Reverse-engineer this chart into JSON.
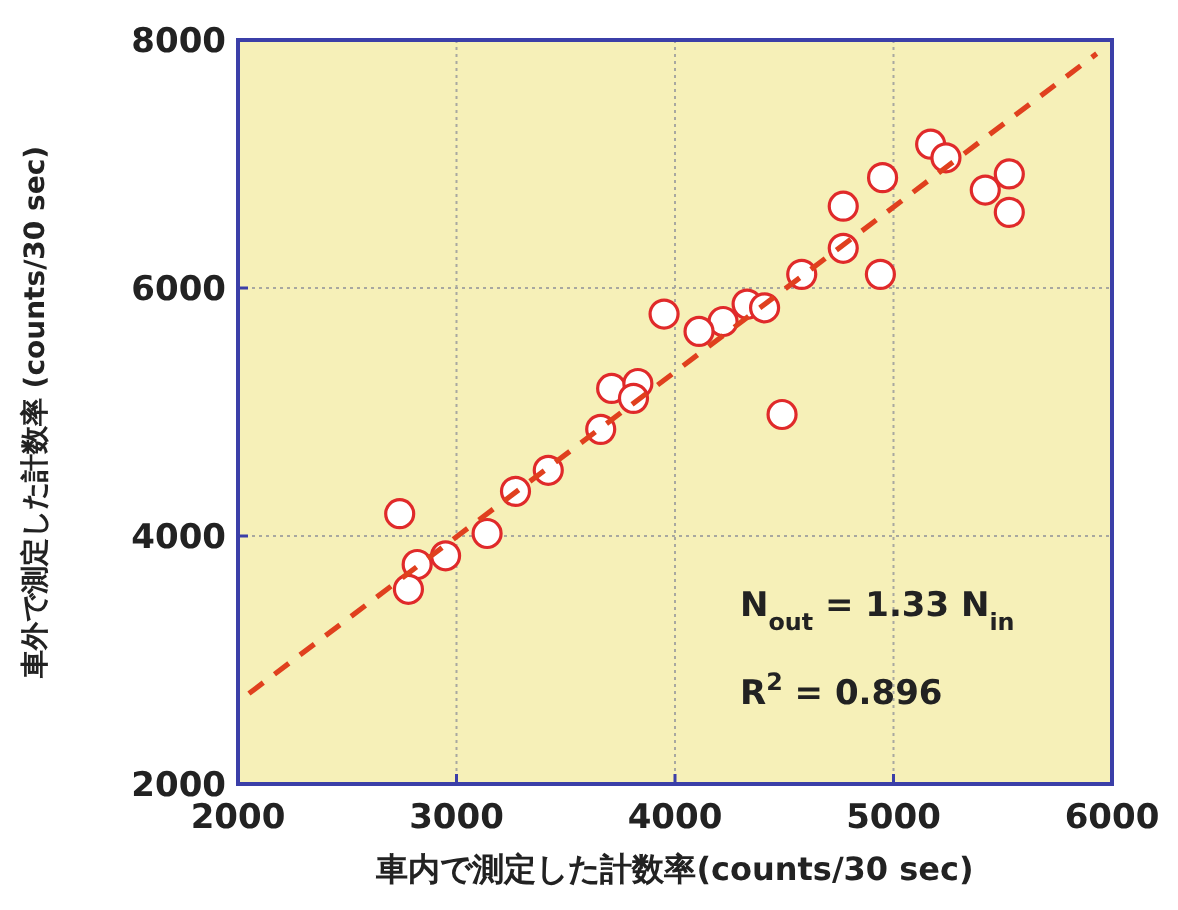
{
  "chart_data": {
    "type": "scatter",
    "xlabel": "車内で測定した計数率(counts/30 sec)",
    "ylabel": "車外で測定した計数率 (counts/30 sec)",
    "xlim": [
      2000,
      6000
    ],
    "ylim": [
      2000,
      8000
    ],
    "xticks": [
      2000,
      3000,
      4000,
      5000,
      6000
    ],
    "yticks": [
      2000,
      4000,
      6000,
      8000
    ],
    "grid": true,
    "series": [
      {
        "color": "#e02a2a",
        "marker": "circle",
        "x": [
          5170,
          5240,
          4950,
          5530,
          5420,
          5530,
          4770,
          4770,
          4940,
          4580,
          3950,
          4330,
          4410,
          4220,
          4110,
          3710,
          3830,
          3810,
          4490,
          3660,
          3420,
          3270,
          3140,
          2740,
          2950,
          2820,
          2780
        ],
        "values": [
          7160,
          7050,
          6890,
          6920,
          6790,
          6610,
          6660,
          6320,
          6110,
          6110,
          5790,
          5870,
          5840,
          5730,
          5650,
          5190,
          5230,
          5110,
          4980,
          4860,
          4530,
          4360,
          4020,
          4180,
          3840,
          3770,
          3570
        ]
      },
      {
        "type": "line",
        "color": "#e0401e",
        "line_style": "dashed",
        "marker": "none",
        "x": [
          2050,
          5930
        ],
        "values": [
          2730,
          7890
        ]
      }
    ],
    "annotations": [
      "N$_{out}$ = 1.33 N$_{in}$",
      "R$^{2}$ = 0.896"
    ]
  }
}
